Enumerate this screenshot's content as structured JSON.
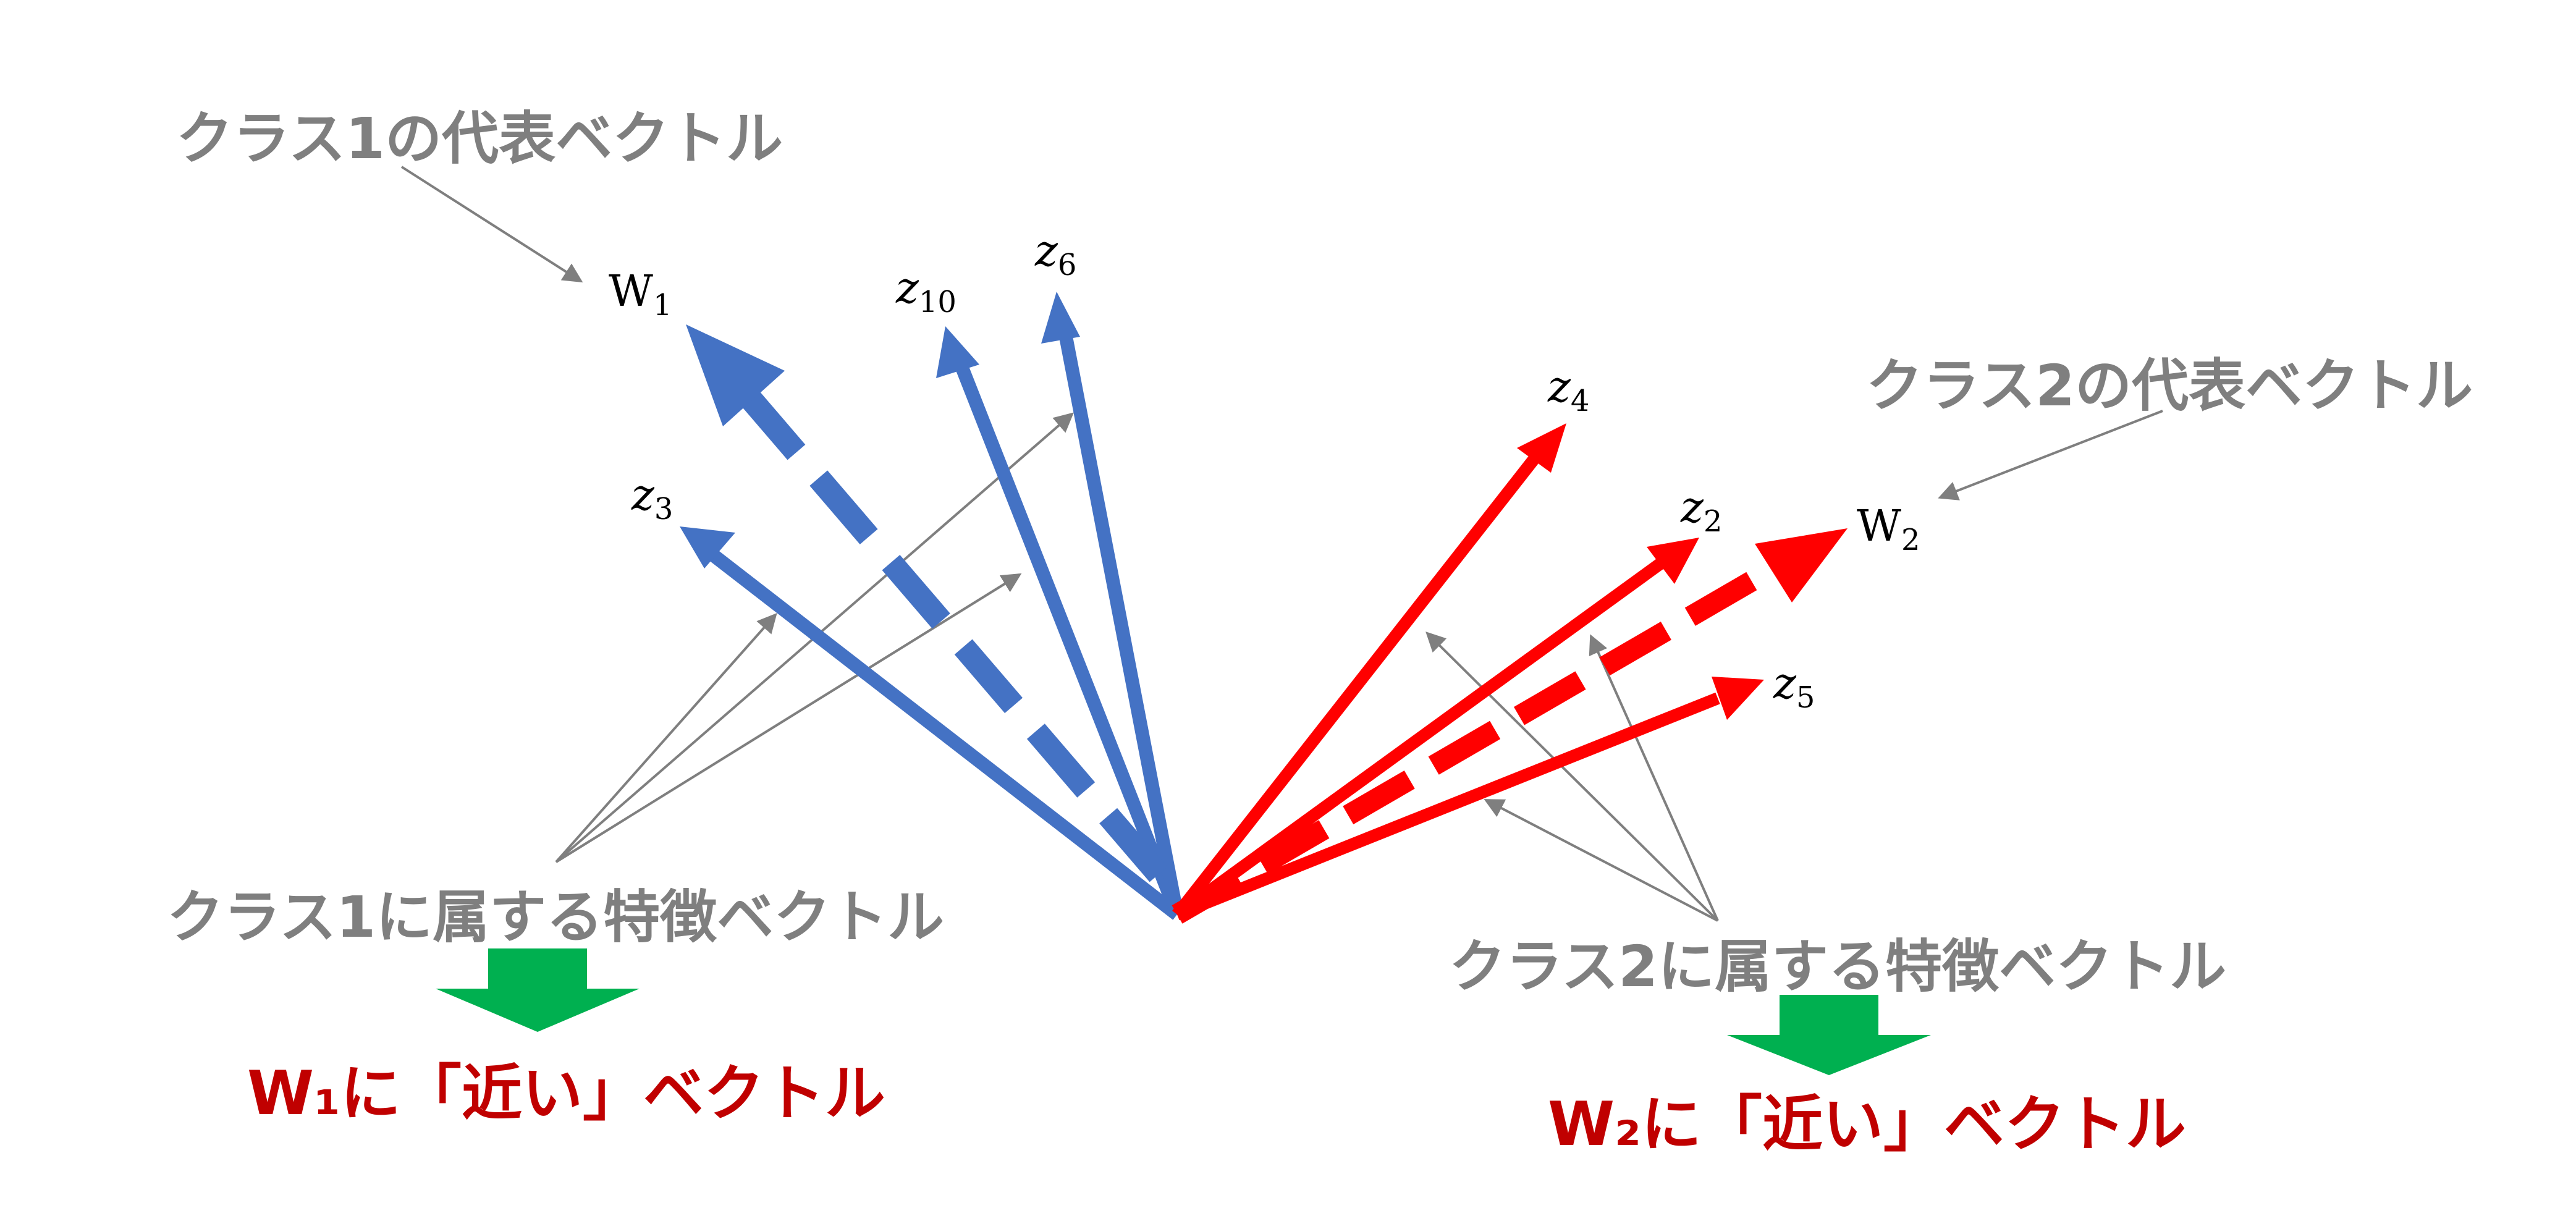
{
  "colors": {
    "class1": "#4472c4",
    "class2": "#ff0000",
    "annotation": "#7f7f7f",
    "green": "#00b050",
    "result": "#c00000"
  },
  "labels": {
    "class1_rep": "クラス1の代表ベクトル",
    "class2_rep": "クラス2の代表ベクトル",
    "class1_feat": "クラス1に属する特徴ベクトル",
    "class2_feat": "クラス2に属する特徴ベクトル",
    "w1_near": "W₁に「近い」ベクトル",
    "w2_near": "W₂に「近い」ベクトル"
  },
  "vectors": {
    "W1": {
      "base": "W",
      "sub": "1"
    },
    "W2": {
      "base": "W",
      "sub": "2"
    },
    "z10": {
      "base": "z",
      "sub": "10"
    },
    "z6": {
      "base": "z",
      "sub": "6"
    },
    "z3": {
      "base": "z",
      "sub": "3"
    },
    "z4": {
      "base": "z",
      "sub": "4"
    },
    "z2": {
      "base": "z",
      "sub": "2"
    },
    "z5": {
      "base": "z",
      "sub": "5"
    }
  }
}
